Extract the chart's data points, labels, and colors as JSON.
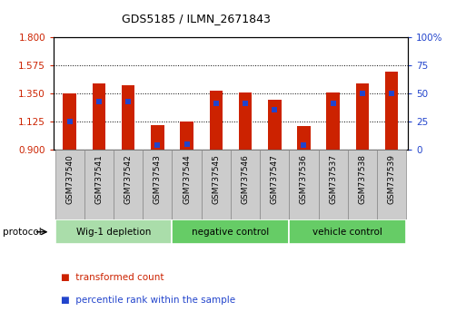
{
  "title": "GDS5185 / ILMN_2671843",
  "samples": [
    "GSM737540",
    "GSM737541",
    "GSM737542",
    "GSM737543",
    "GSM737544",
    "GSM737545",
    "GSM737546",
    "GSM737547",
    "GSM737536",
    "GSM737537",
    "GSM737538",
    "GSM737539"
  ],
  "group_defs": [
    {
      "label": "Wig-1 depletion",
      "indices": [
        0,
        1,
        2,
        3
      ],
      "color": "#aaddaa"
    },
    {
      "label": "negative control",
      "indices": [
        4,
        5,
        6,
        7
      ],
      "color": "#66cc66"
    },
    {
      "label": "vehicle control",
      "indices": [
        8,
        9,
        10,
        11
      ],
      "color": "#66cc66"
    }
  ],
  "bar_color": "#cc2200",
  "blue_color": "#2244cc",
  "y_min": 0.9,
  "y_max": 1.8,
  "y_ticks": [
    0.9,
    1.125,
    1.35,
    1.575,
    1.8
  ],
  "y_right_ticks": [
    0,
    25,
    50,
    75,
    100
  ],
  "bar_tops": [
    1.345,
    1.425,
    1.415,
    1.09,
    1.125,
    1.37,
    1.355,
    1.3,
    1.085,
    1.355,
    1.43,
    1.525
  ],
  "blue_values": [
    1.125,
    1.285,
    1.285,
    0.935,
    0.94,
    1.27,
    1.265,
    1.215,
    0.932,
    1.265,
    1.35,
    1.35
  ],
  "bar_width": 0.45,
  "tick_bg_color": "#cccccc",
  "tick_bg_edge": "#888888"
}
